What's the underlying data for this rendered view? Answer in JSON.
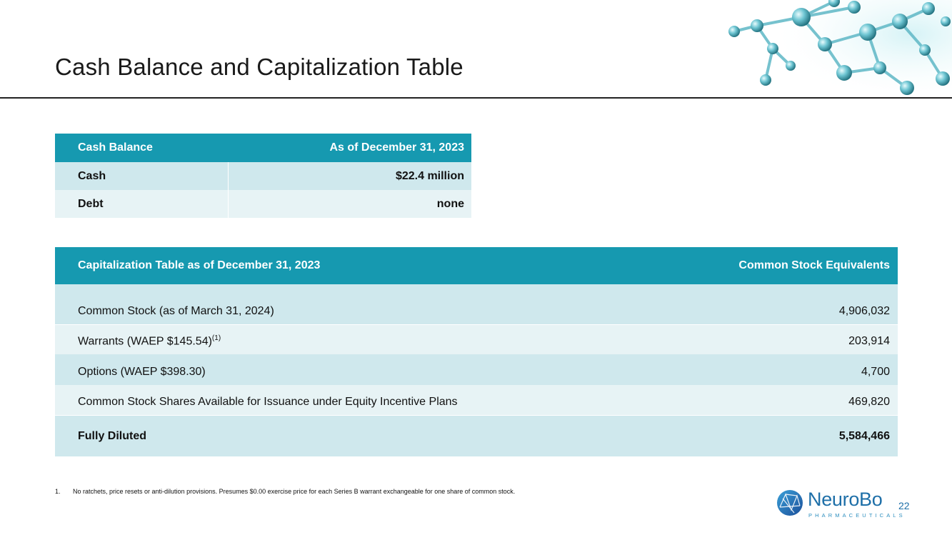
{
  "slide": {
    "title": "Cash Balance and Capitalization Table",
    "page_number": "22"
  },
  "cash_table": {
    "header": {
      "label": "Cash Balance",
      "value": "As of December 31, 2023"
    },
    "rows": [
      {
        "label": "Cash",
        "value": "$22.4 million"
      },
      {
        "label": "Debt",
        "value": "none"
      }
    ]
  },
  "cap_table": {
    "header": {
      "label": "Capitalization Table as of December 31, 2023",
      "value": "Common Stock Equivalents"
    },
    "rows": [
      {
        "label": "Common Stock (as of March 31, 2024)",
        "sup": "",
        "value": "4,906,032"
      },
      {
        "label": "Warrants (WAEP $145.54)",
        "sup": "(1)",
        "value": "203,914"
      },
      {
        "label": "Options (WAEP $398.30)",
        "sup": "",
        "value": "4,700"
      },
      {
        "label": "Common Stock Shares Available for Issuance under Equity Incentive Plans",
        "sup": "",
        "value": "469,820"
      }
    ],
    "total": {
      "label": "Fully Diluted",
      "value": "5,584,466"
    }
  },
  "footnote": {
    "number": "1.",
    "text": "No ratchets, price resets or anti-dilution provisions.  Presumes $0.00 exercise price for each Series B warrant exchangeable for one share of common stock."
  },
  "logo": {
    "word": "NeuroBo",
    "sub": "PHARMACEUTICALS",
    "icon": "neurobo-sphere-icon"
  },
  "colors": {
    "header_teal": "#1699b0",
    "row_dark": "#cfe8ed",
    "row_light": "#e7f3f5",
    "brand_blue": "#1e6fa8"
  }
}
